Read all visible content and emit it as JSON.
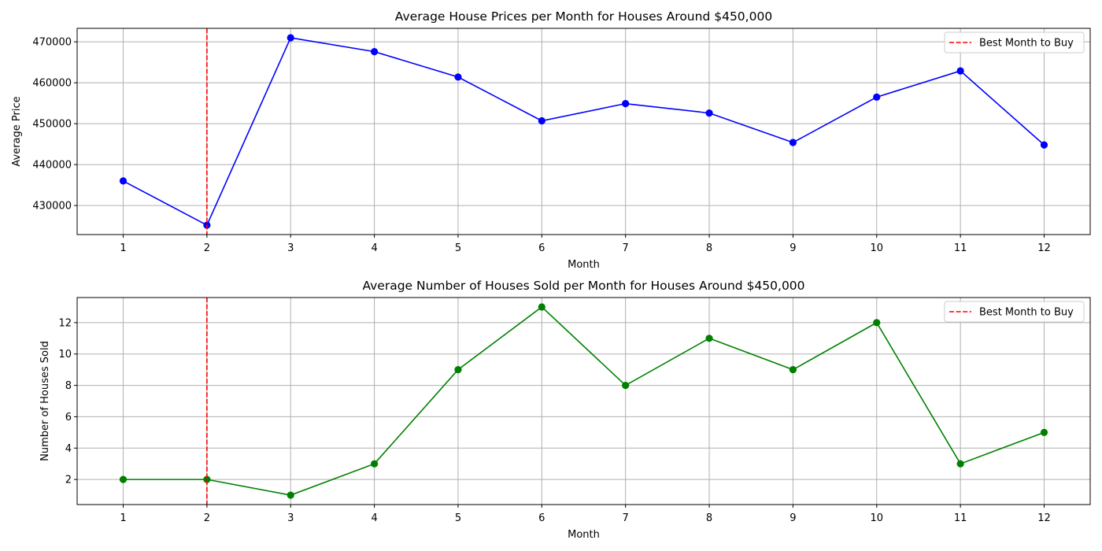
{
  "chart_data": [
    {
      "type": "line",
      "title": "Average House Prices per Month for Houses Around $450,000",
      "xlabel": "Month",
      "ylabel": "Average Price",
      "x": [
        1,
        2,
        3,
        4,
        5,
        6,
        7,
        8,
        9,
        10,
        11,
        12
      ],
      "series": [
        {
          "values": [
            436000,
            425200,
            471000,
            467600,
            461400,
            450700,
            454900,
            452600,
            445400,
            456500,
            462900,
            444800
          ],
          "color": "#0000ff"
        }
      ],
      "xlim": [
        0.45,
        12.55
      ],
      "ylim": [
        422900,
        473300
      ],
      "xticks": [
        "1",
        "2",
        "3",
        "4",
        "5",
        "6",
        "7",
        "8",
        "9",
        "10",
        "11",
        "12"
      ],
      "yticks": [
        430000,
        440000,
        450000,
        460000,
        470000
      ],
      "ytick_labels": [
        "430000",
        "440000",
        "450000",
        "460000",
        "470000"
      ],
      "vline": {
        "x": 2,
        "label": "Best Month to Buy",
        "color": "#ff0000"
      },
      "legend": "top-right",
      "grid": true
    },
    {
      "type": "line",
      "title": "Average Number of Houses Sold per Month for Houses Around $450,000",
      "xlabel": "Month",
      "ylabel": "Number of Houses Sold",
      "x": [
        1,
        2,
        3,
        4,
        5,
        6,
        7,
        8,
        9,
        10,
        11,
        12
      ],
      "series": [
        {
          "values": [
            2,
            2,
            1,
            3,
            9,
            13,
            8,
            11,
            9,
            12,
            3,
            5
          ],
          "color": "#008000"
        }
      ],
      "xlim": [
        0.45,
        12.55
      ],
      "ylim": [
        0.4,
        13.6
      ],
      "xticks": [
        "1",
        "2",
        "3",
        "4",
        "5",
        "6",
        "7",
        "8",
        "9",
        "10",
        "11",
        "12"
      ],
      "yticks": [
        2,
        4,
        6,
        8,
        10,
        12
      ],
      "ytick_labels": [
        "2",
        "4",
        "6",
        "8",
        "10",
        "12"
      ],
      "vline": {
        "x": 2,
        "label": "Best Month to Buy",
        "color": "#ff0000"
      },
      "legend": "top-right",
      "grid": true
    }
  ]
}
